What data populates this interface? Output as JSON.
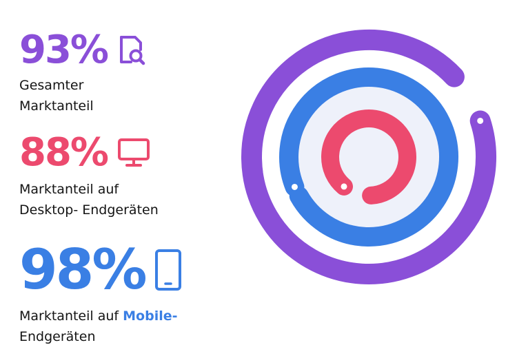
{
  "stats": [
    {
      "value": "93%",
      "label_line1": "Gesamter",
      "label_line2": "Marktanteil",
      "color": "#8A4FD8",
      "icon": "search-document-icon"
    },
    {
      "value": "88%",
      "label_line1": "Marktanteil auf",
      "label_line2": "Desktop- Endgeräten",
      "color": "#EC4A6E",
      "icon": "monitor-icon"
    },
    {
      "value": "98%",
      "label_line1_prefix": "Marktanteil auf ",
      "label_line1_highlight": "Mobile-",
      "label_line2": "Endgeräten",
      "color": "#3A7FE4",
      "highlight_color": "#3A7FE4",
      "icon": "tablet-icon"
    }
  ],
  "chart_data": {
    "type": "radial_bar",
    "max": 100,
    "series": [
      {
        "value": 93,
        "color": "#8A4FD8"
      },
      {
        "value": 98,
        "color": "#3A7FE4"
      },
      {
        "value": 88,
        "color": "#EC4A6E"
      }
    ]
  }
}
